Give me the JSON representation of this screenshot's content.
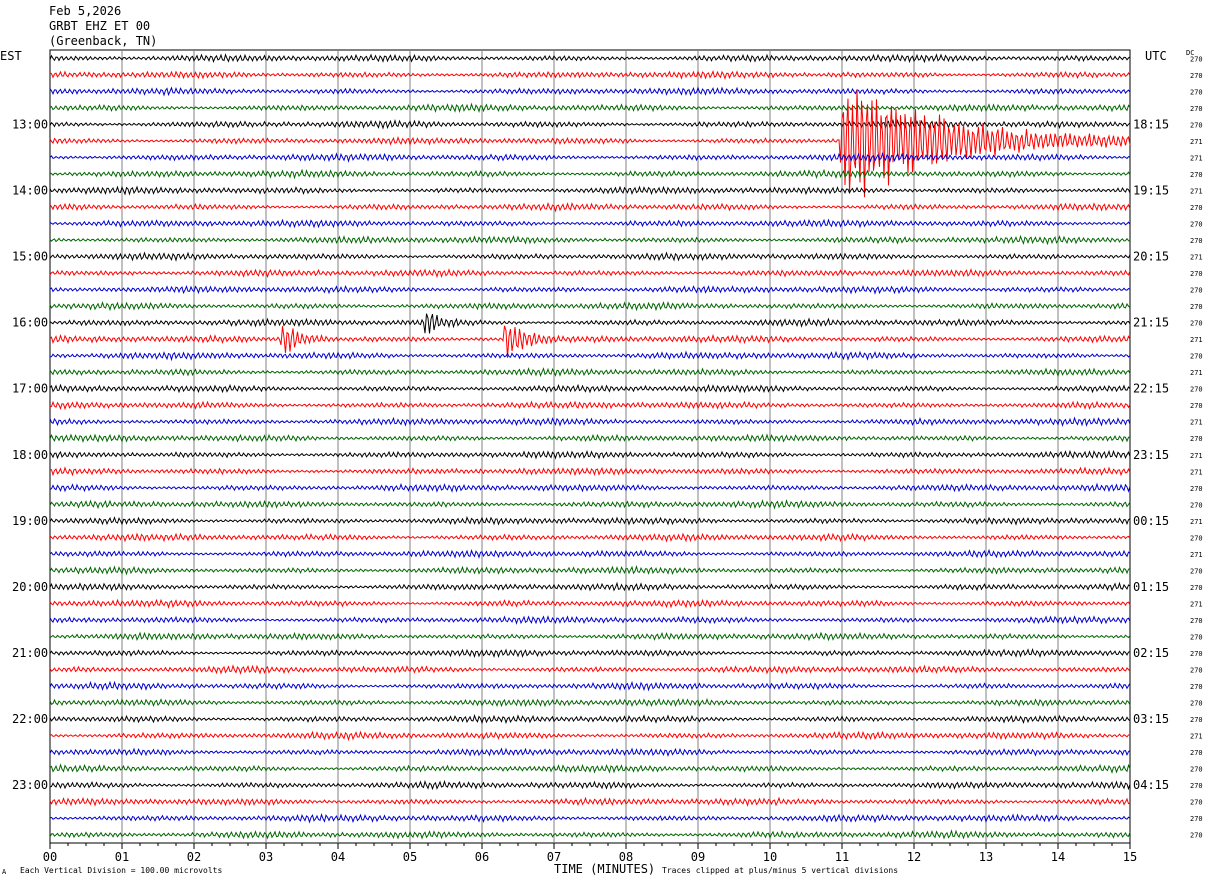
{
  "header": {
    "date": "Feb 5,2026",
    "station": "GRBT EHZ ET 00",
    "location": "(Greenback, TN)"
  },
  "left_timezone": "EST",
  "right_timezone": "UTC",
  "dc_label": "DC",
  "footer": {
    "scale_text": "Each Vertical Division =  100.00 microvolts",
    "clip_text": "Traces clipped at plus/minus 5 vertical divisions",
    "corner_mark": "A"
  },
  "colors": {
    "trace_cycle": [
      "#000000",
      "#ff0000",
      "#0000cc",
      "#006600"
    ],
    "grid": "#808080",
    "frame": "#000000"
  },
  "chart_data": {
    "type": "line",
    "title": "",
    "xlabel": "TIME (MINUTES)",
    "ylabel": "",
    "x_ticks": [
      "00",
      "01",
      "02",
      "03",
      "04",
      "05",
      "06",
      "07",
      "08",
      "09",
      "10",
      "11",
      "12",
      "13",
      "14",
      "15"
    ],
    "xlim": [
      0,
      15
    ],
    "rows": 48,
    "left_hour_labels": [
      "13:00",
      "14:00",
      "15:00",
      "16:00",
      "17:00",
      "18:00",
      "19:00",
      "20:00",
      "21:00",
      "22:00",
      "23:00"
    ],
    "left_label_start_row": 4,
    "right_time_labels": [
      "18:15",
      "19:15",
      "20:15",
      "21:15",
      "22:15",
      "23:15",
      "00:15",
      "01:15",
      "02:15",
      "03:15",
      "04:15"
    ],
    "dc_offsets": [
      "270",
      "270",
      "270",
      "270",
      "270",
      "271",
      "271",
      "270",
      "271",
      "270",
      "270",
      "270",
      "271",
      "270",
      "270",
      "270",
      "270",
      "271",
      "270",
      "271",
      "270",
      "270",
      "271",
      "270",
      "271",
      "271",
      "270",
      "270",
      "271",
      "270",
      "271",
      "270",
      "270",
      "271",
      "270",
      "270",
      "270",
      "270",
      "270",
      "270",
      "270",
      "271",
      "270",
      "270",
      "270",
      "270",
      "270",
      "270"
    ],
    "events": [
      {
        "row": 5,
        "start_minute": 10.95,
        "end_minute": 15.0,
        "peak_amplitude": 5
      },
      {
        "row": 17,
        "start_minute": 3.2,
        "end_minute": 4.0,
        "peak_amplitude": 1.5
      },
      {
        "row": 17,
        "start_minute": 6.3,
        "end_minute": 7.0,
        "peak_amplitude": 2
      },
      {
        "row": 16,
        "start_minute": 5.2,
        "end_minute": 5.7,
        "peak_amplitude": 1.2
      }
    ]
  }
}
